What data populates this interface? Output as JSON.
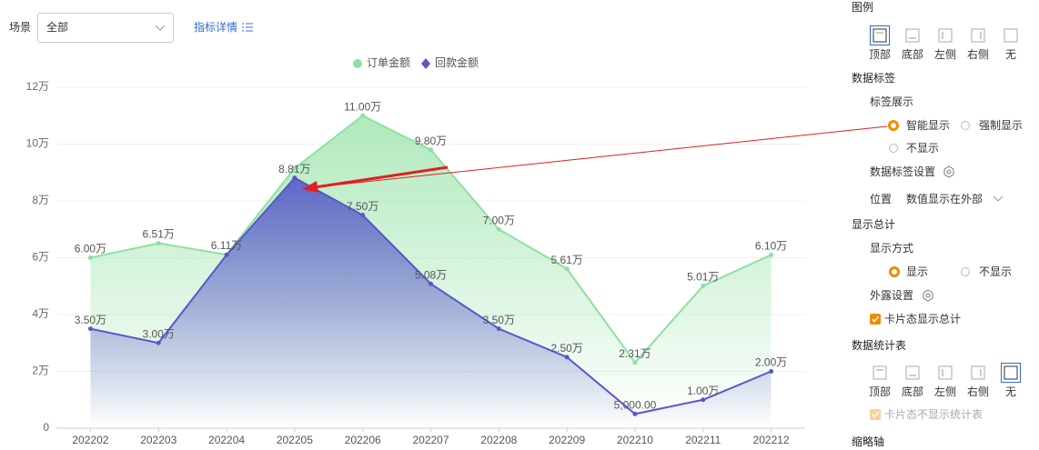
{
  "toolbar": {
    "scene_label": "场景",
    "scene_value": "全部",
    "detail_link": "指标详情"
  },
  "chart_data": {
    "type": "area",
    "categories": [
      "202202",
      "202203",
      "202204",
      "202205",
      "202206",
      "202207",
      "202208",
      "202209",
      "202210",
      "202211",
      "202212"
    ],
    "series": [
      {
        "name": "订单金额",
        "color": "#8ee0a0",
        "marker": "circle",
        "values": [
          60000,
          65100,
          61100,
          91500,
          110000,
          98000,
          70000,
          56100,
          23100,
          50100,
          61000
        ],
        "value_labels": [
          "6.00万",
          "6.51万",
          "6.11万",
          null,
          "11.00万",
          "9.80万",
          "7.00万",
          "5.61万",
          "2.31万",
          "5.01万",
          "6.10万"
        ]
      },
      {
        "name": "回款金额",
        "color": "#5558c8",
        "marker": "diamond",
        "values": [
          35000,
          30000,
          61000,
          88100,
          75000,
          50800,
          35000,
          25000,
          5000,
          10000,
          20000
        ],
        "value_labels": [
          "3.50万",
          "3.00万",
          null,
          "8.81万",
          "7.50万",
          "5.08万",
          "3.50万",
          "2.50万",
          "5,000.00",
          "1.00万",
          "2.00万"
        ]
      }
    ],
    "ylim": [
      0,
      120000
    ],
    "yticks": [
      0,
      {
        "value": 20000,
        "label": "2万"
      },
      {
        "value": 40000,
        "label": "4万"
      },
      {
        "value": 60000,
        "label": "6万"
      },
      {
        "value": 80000,
        "label": "8万"
      },
      {
        "value": 100000,
        "label": "10万"
      },
      {
        "value": 120000,
        "label": "12万"
      }
    ],
    "grid": true,
    "legend": "top"
  },
  "panel": {
    "legend": {
      "title": "图例",
      "options": [
        "顶部",
        "底部",
        "左侧",
        "右侧",
        "无"
      ]
    },
    "data_labels": {
      "title": "数据标签",
      "display_label": "标签展示",
      "options": [
        "智能显示",
        "强制显示",
        "不显示"
      ],
      "settings": "数据标签设置",
      "position_label": "位置",
      "position_value": "数值显示在外部"
    },
    "total": {
      "title": "显示总计",
      "mode_label": "显示方式",
      "options": [
        "显示",
        "不显示"
      ],
      "exposure": "外露设置",
      "checkbox": "卡片态显示总计"
    },
    "stats_table": {
      "title": "数据统计表",
      "options": [
        "顶部",
        "底部",
        "左侧",
        "右侧",
        "无"
      ],
      "checkbox": "卡片态不显示统计表"
    },
    "zoom_axis": "缩略轴"
  }
}
